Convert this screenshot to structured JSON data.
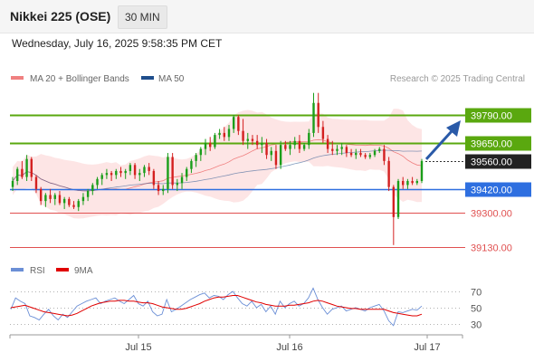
{
  "header": {
    "title": "Nikkei 225 (OSE)",
    "timeframe": "30 MIN",
    "datetime": "Wednesday, July 16, 2025 9:58:35 PM CET"
  },
  "legend": {
    "ma20": {
      "label": "MA 20 + Bollinger Bands",
      "color": "#f08080"
    },
    "ma50": {
      "label": "MA 50",
      "color": "#1f4e8c"
    },
    "credit": "Research © 2025 Trading Central"
  },
  "rsi_legend": {
    "rsi": {
      "label": "RSI",
      "color": "#6b8fd6"
    },
    "ma9": {
      "label": "9MA",
      "color": "#e00000"
    }
  },
  "colors": {
    "bull": "#1a9e1a",
    "bear": "#d42020",
    "resistance": "#5aa80f",
    "pivot": "#2e6fe0",
    "support": "#e05050",
    "band_fill": "#fde2e2",
    "arrow": "#2a5aa8"
  },
  "chart_data": [
    {
      "type": "candlestick",
      "y_scale": {
        "min": 39100,
        "max": 39900
      },
      "x_labels": [
        "Jul 15",
        "Jul 16",
        "Jul 17"
      ],
      "levels": [
        {
          "value": 39790,
          "label": "39790.00",
          "role": "resistance"
        },
        {
          "value": 39650,
          "label": "39650.00",
          "role": "resistance"
        },
        {
          "value": 39560,
          "label": "39560.00",
          "role": "current"
        },
        {
          "value": 39420,
          "label": "39420.00",
          "role": "pivot"
        },
        {
          "value": 39300,
          "label": "39300.00",
          "role": "support"
        },
        {
          "value": 39130,
          "label": "39130.00",
          "role": "support"
        }
      ],
      "forecast": {
        "from": 39560,
        "to": 39790
      },
      "candles": [
        [
          39430,
          39480,
          39410,
          39460
        ],
        [
          39460,
          39530,
          39440,
          39520
        ],
        [
          39520,
          39560,
          39470,
          39480
        ],
        [
          39480,
          39590,
          39460,
          39570
        ],
        [
          39570,
          39580,
          39460,
          39480
        ],
        [
          39480,
          39490,
          39400,
          39420
        ],
        [
          39420,
          39430,
          39340,
          39360
        ],
        [
          39360,
          39400,
          39330,
          39390
        ],
        [
          39390,
          39420,
          39350,
          39370
        ],
        [
          39370,
          39400,
          39340,
          39390
        ],
        [
          39390,
          39410,
          39340,
          39350
        ],
        [
          39350,
          39380,
          39320,
          39370
        ],
        [
          39370,
          39380,
          39330,
          39340
        ],
        [
          39340,
          39360,
          39320,
          39330
        ],
        [
          39330,
          39370,
          39310,
          39360
        ],
        [
          39360,
          39400,
          39340,
          39380
        ],
        [
          39380,
          39420,
          39360,
          39410
        ],
        [
          39410,
          39450,
          39390,
          39440
        ],
        [
          39440,
          39480,
          39420,
          39470
        ],
        [
          39470,
          39500,
          39440,
          39490
        ],
        [
          39490,
          39520,
          39470,
          39500
        ],
        [
          39500,
          39510,
          39460,
          39490
        ],
        [
          39490,
          39520,
          39470,
          39510
        ],
        [
          39510,
          39530,
          39480,
          39500
        ],
        [
          39500,
          39520,
          39470,
          39510
        ],
        [
          39510,
          39550,
          39490,
          39540
        ],
        [
          39540,
          39550,
          39470,
          39490
        ],
        [
          39490,
          39520,
          39460,
          39500
        ],
        [
          39500,
          39540,
          39480,
          39530
        ],
        [
          39530,
          39550,
          39490,
          39510
        ],
        [
          39510,
          39520,
          39420,
          39440
        ],
        [
          39440,
          39460,
          39390,
          39410
        ],
        [
          39410,
          39440,
          39390,
          39420
        ],
        [
          39420,
          39600,
          39400,
          39580
        ],
        [
          39580,
          39600,
          39420,
          39440
        ],
        [
          39440,
          39470,
          39410,
          39450
        ],
        [
          39450,
          39500,
          39420,
          39480
        ],
        [
          39480,
          39530,
          39460,
          39520
        ],
        [
          39520,
          39570,
          39500,
          39560
        ],
        [
          39560,
          39600,
          39530,
          39590
        ],
        [
          39590,
          39630,
          39560,
          39620
        ],
        [
          39620,
          39670,
          39590,
          39650
        ],
        [
          39650,
          39680,
          39610,
          39630
        ],
        [
          39630,
          39700,
          39620,
          39690
        ],
        [
          39690,
          39720,
          39670,
          39700
        ],
        [
          39700,
          39730,
          39660,
          39680
        ],
        [
          39680,
          39740,
          39660,
          39720
        ],
        [
          39720,
          39790,
          39700,
          39780
        ],
        [
          39780,
          39790,
          39690,
          39710
        ],
        [
          39710,
          39770,
          39640,
          39660
        ],
        [
          39660,
          39700,
          39620,
          39670
        ],
        [
          39670,
          39690,
          39640,
          39660
        ],
        [
          39660,
          39690,
          39620,
          39640
        ],
        [
          39640,
          39680,
          39600,
          39650
        ],
        [
          39650,
          39670,
          39570,
          39590
        ],
        [
          39590,
          39630,
          39560,
          39610
        ],
        [
          39610,
          39640,
          39520,
          39540
        ],
        [
          39540,
          39660,
          39520,
          39640
        ],
        [
          39640,
          39660,
          39610,
          39620
        ],
        [
          39620,
          39660,
          39590,
          39640
        ],
        [
          39640,
          39680,
          39620,
          39660
        ],
        [
          39660,
          39690,
          39600,
          39620
        ],
        [
          39620,
          39650,
          39610,
          39640
        ],
        [
          39640,
          39720,
          39620,
          39700
        ],
        [
          39700,
          39900,
          39680,
          39850
        ],
        [
          39850,
          39900,
          39700,
          39730
        ],
        [
          39730,
          39760,
          39650,
          39670
        ],
        [
          39670,
          39690,
          39600,
          39620
        ],
        [
          39620,
          39660,
          39590,
          39610
        ],
        [
          39610,
          39640,
          39590,
          39620
        ],
        [
          39620,
          39650,
          39590,
          39630
        ],
        [
          39630,
          39640,
          39580,
          39600
        ],
        [
          39600,
          39620,
          39580,
          39590
        ],
        [
          39590,
          39620,
          39570,
          39600
        ],
        [
          39600,
          39620,
          39580,
          39590
        ],
        [
          39590,
          39600,
          39570,
          39580
        ],
        [
          39580,
          39600,
          39570,
          39590
        ],
        [
          39590,
          39620,
          39580,
          39610
        ],
        [
          39610,
          39630,
          39600,
          39620
        ],
        [
          39620,
          39640,
          39540,
          39560
        ],
        [
          39560,
          39580,
          39410,
          39430
        ],
        [
          39430,
          39440,
          39140,
          39280
        ],
        [
          39280,
          39470,
          39270,
          39460
        ],
        [
          39460,
          39480,
          39420,
          39440
        ],
        [
          39440,
          39470,
          39420,
          39460
        ],
        [
          39460,
          39480,
          39440,
          39450
        ],
        [
          39450,
          39470,
          39440,
          39460
        ],
        [
          39460,
          39570,
          39450,
          39560
        ]
      ]
    },
    {
      "type": "line",
      "name": "RSI",
      "y_ticks": [
        70,
        50,
        30
      ],
      "y_scale": {
        "min": 20,
        "max": 80
      },
      "series": [
        {
          "name": "RSI",
          "values": [
            48,
            62,
            58,
            55,
            40,
            38,
            35,
            42,
            48,
            40,
            35,
            42,
            38,
            45,
            52,
            55,
            58,
            60,
            62,
            55,
            58,
            60,
            62,
            58,
            55,
            60,
            65,
            55,
            52,
            58,
            45,
            40,
            42,
            60,
            45,
            48,
            52,
            56,
            60,
            63,
            66,
            68,
            62,
            65,
            64,
            60,
            66,
            70,
            62,
            55,
            52,
            58,
            50,
            54,
            45,
            52,
            42,
            58,
            50,
            55,
            58,
            52,
            55,
            62,
            74,
            60,
            50,
            42,
            48,
            50,
            52,
            46,
            48,
            50,
            48,
            46,
            50,
            52,
            54,
            46,
            34,
            28,
            45,
            44,
            46,
            48,
            47,
            52
          ]
        },
        {
          "name": "9MA",
          "values": [
            50,
            51,
            52,
            53,
            51,
            49,
            47,
            45,
            44,
            43,
            42,
            41,
            40,
            41,
            43,
            46,
            49,
            52,
            54,
            56,
            57,
            58,
            58,
            59,
            59,
            58,
            58,
            57,
            56,
            56,
            55,
            53,
            51,
            50,
            49,
            48,
            48,
            49,
            51,
            53,
            55,
            58,
            60,
            62,
            63,
            63,
            64,
            65,
            65,
            63,
            61,
            59,
            57,
            56,
            54,
            53,
            52,
            52,
            52,
            53,
            53,
            54,
            55,
            56,
            58,
            59,
            58,
            56,
            54,
            52,
            51,
            50,
            49,
            49,
            48,
            48,
            48,
            48,
            48,
            48,
            46,
            44,
            43,
            42,
            41,
            40,
            40,
            42
          ]
        }
      ]
    }
  ]
}
